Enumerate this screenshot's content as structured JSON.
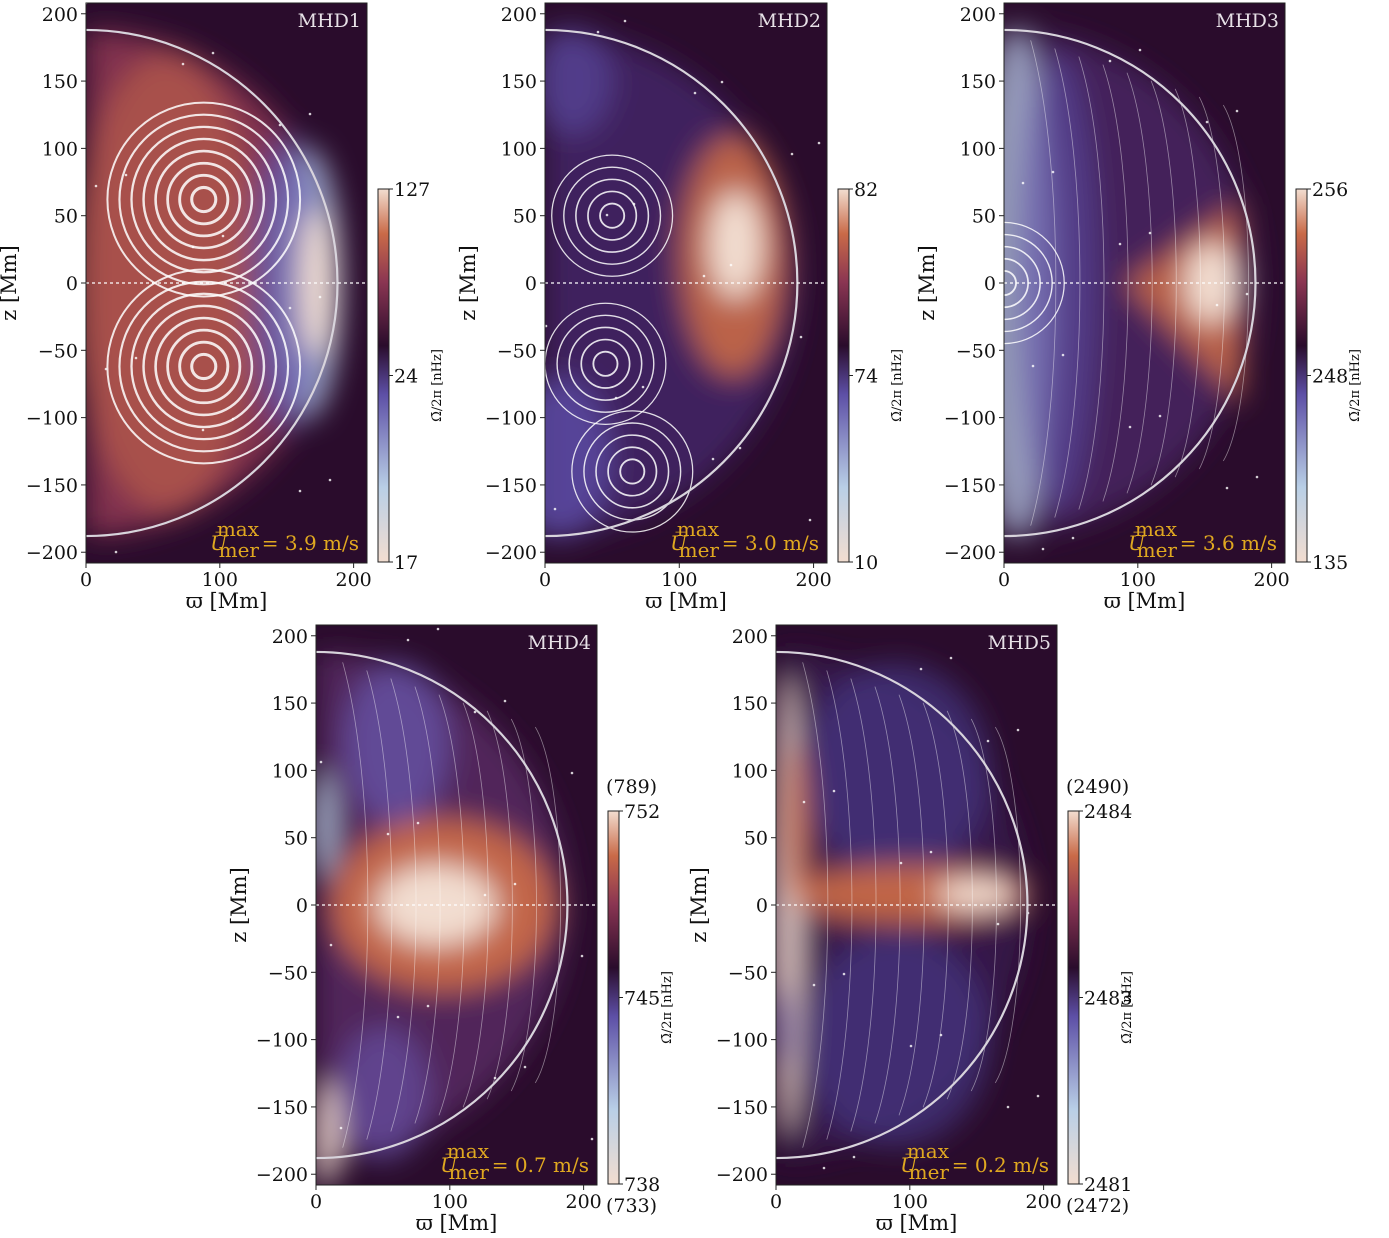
{
  "chart_data": [
    {
      "type": "heatmap",
      "title": "MHD1",
      "xlabel": "ϖ [Mm]",
      "ylabel": "z [Mm]",
      "xlim": [
        0,
        210
      ],
      "ylim": [
        -208,
        208
      ],
      "xticks": [
        0,
        100,
        200
      ],
      "yticks": [
        -200,
        -150,
        -100,
        -50,
        0,
        50,
        100,
        150,
        200
      ],
      "colorbar": {
        "label": "Ω̄/2π [nHz]",
        "ticks": [
          "127",
          "24",
          "17"
        ],
        "max_note": "",
        "min_note": ""
      },
      "annotation": {
        "lhs": "U̅",
        "sup": "max",
        "sub": "mer",
        "rhs": "= 3.9 m/s"
      },
      "hotspot": "equator-surface",
      "grid": false
    },
    {
      "type": "heatmap",
      "title": "MHD2",
      "xlabel": "ϖ [Mm]",
      "ylabel": "z [Mm]",
      "xlim": [
        0,
        210
      ],
      "ylim": [
        -208,
        208
      ],
      "xticks": [
        0,
        100,
        200
      ],
      "yticks": [
        -200,
        -150,
        -100,
        -50,
        0,
        50,
        100,
        150,
        200
      ],
      "colorbar": {
        "label": "Ω̄/2π [nHz]",
        "ticks": [
          "82",
          "74",
          "10"
        ],
        "max_note": "",
        "min_note": ""
      },
      "annotation": {
        "lhs": "U̅",
        "sup": "max",
        "sub": "mer",
        "rhs": "= 3.0 m/s"
      },
      "hotspot": "off-equator-blob",
      "grid": false
    },
    {
      "type": "heatmap",
      "title": "MHD3",
      "xlabel": "ϖ [Mm]",
      "ylabel": "z [Mm]",
      "xlim": [
        0,
        210
      ],
      "ylim": [
        -208,
        208
      ],
      "xticks": [
        0,
        100,
        200
      ],
      "yticks": [
        -200,
        -150,
        -100,
        -50,
        0,
        50,
        100,
        150,
        200
      ],
      "colorbar": {
        "label": "Ω̄/2π [nHz]",
        "ticks": [
          "256",
          "248",
          "135"
        ],
        "max_note": "",
        "min_note": ""
      },
      "annotation": {
        "lhs": "U̅",
        "sup": "max",
        "sub": "mer",
        "rhs": "= 3.6 m/s"
      },
      "hotspot": "equatorial-wedge",
      "grid": false
    },
    {
      "type": "heatmap",
      "title": "MHD4",
      "xlabel": "ϖ [Mm]",
      "ylabel": "z [Mm]",
      "xlim": [
        0,
        210
      ],
      "ylim": [
        -208,
        208
      ],
      "xticks": [
        0,
        100,
        200
      ],
      "yticks": [
        -200,
        -150,
        -100,
        -50,
        0,
        50,
        100,
        150,
        200
      ],
      "colorbar": {
        "label": "Ω̄/2π [nHz]",
        "ticks": [
          "752",
          "745",
          "738"
        ],
        "max_note": "(789)",
        "min_note": "(733)"
      },
      "annotation": {
        "lhs": "U̅",
        "sup": "max",
        "sub": "mer",
        "rhs": "= 0.7 m/s"
      },
      "hotspot": "broad-equatorial-band",
      "grid": false
    },
    {
      "type": "heatmap",
      "title": "MHD5",
      "xlabel": "ϖ [Mm]",
      "ylabel": "z [Mm]",
      "xlim": [
        0,
        210
      ],
      "ylim": [
        -208,
        208
      ],
      "xticks": [
        0,
        100,
        200
      ],
      "yticks": [
        -200,
        -150,
        -100,
        -50,
        0,
        50,
        100,
        150,
        200
      ],
      "colorbar": {
        "label": "Ω̄/2π [nHz]",
        "ticks": [
          "2484",
          "2483",
          "2481"
        ],
        "max_note": "(2490)",
        "min_note": "(2472)"
      },
      "annotation": {
        "lhs": "U̅",
        "sup": "max",
        "sub": "mer",
        "rhs": "= 0.2 m/s"
      },
      "hotspot": "thin-equatorial-jet",
      "grid": false
    }
  ],
  "colors": {
    "background": "#2a0c2c",
    "hot": "#f2ddd0",
    "warm": "#c96a48",
    "mid": "#8a3552",
    "cool": "#5d4fa6",
    "cold": "#b9cfe6",
    "boundary": "#d8d4dc",
    "annotation": "#e0a820"
  }
}
